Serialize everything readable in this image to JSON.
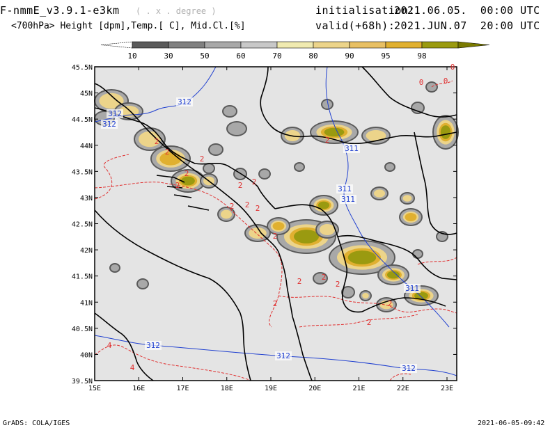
{
  "header": {
    "model": "F-nmmE_v3.9.1-e3km",
    "grid": "( . x . degree )",
    "init_label": "initialisation:",
    "init_value": "2021.06.05.  00:00 UTC",
    "subtitle": "<700hPa> Height [dpm],Temp.[ C], Mid.Cl.[%]",
    "valid_label": "valid(+68h):",
    "valid_value": "2021.JUN.07  20:00 UTC"
  },
  "legend": {
    "ticks": [
      "10",
      "30",
      "50",
      "60",
      "70",
      "80",
      "90",
      "95",
      "98"
    ],
    "colors": [
      "#5a5a5a",
      "#808080",
      "#a8a8a8",
      "#c8c8c8",
      "#f0eab0",
      "#ecd48a",
      "#e8c064",
      "#e0b030",
      "#9a9a10"
    ]
  },
  "map": {
    "lat_labels": [
      "45.5N",
      "45N",
      "44.5N",
      "44N",
      "43.5N",
      "43N",
      "42.5N",
      "42N",
      "41.5N",
      "41N",
      "40.5N",
      "40N",
      "39.5N"
    ],
    "lon_labels": [
      "15E",
      "16E",
      "17E",
      "18E",
      "19E",
      "20E",
      "21E",
      "22E",
      "23E"
    ],
    "height_labels": [
      "312",
      "312",
      "312",
      "311",
      "311",
      "311",
      "311",
      "312",
      "312",
      "312"
    ],
    "temp_labels": [
      "2",
      "2",
      "2",
      "2",
      "2",
      "2",
      "2",
      "2",
      "2",
      "2",
      "2",
      "2",
      "2",
      "2",
      "2",
      "2",
      "2",
      "2",
      "4",
      "4",
      "0",
      "0",
      "0"
    ],
    "colors": {
      "background": "#e4e4e4",
      "height_contour": "#2040d0",
      "temp_contour": "#e03030",
      "coast": "#000000"
    }
  },
  "footer": {
    "left": "GrADS: COLA/IGES",
    "right": "2021-06-05-09:42"
  }
}
